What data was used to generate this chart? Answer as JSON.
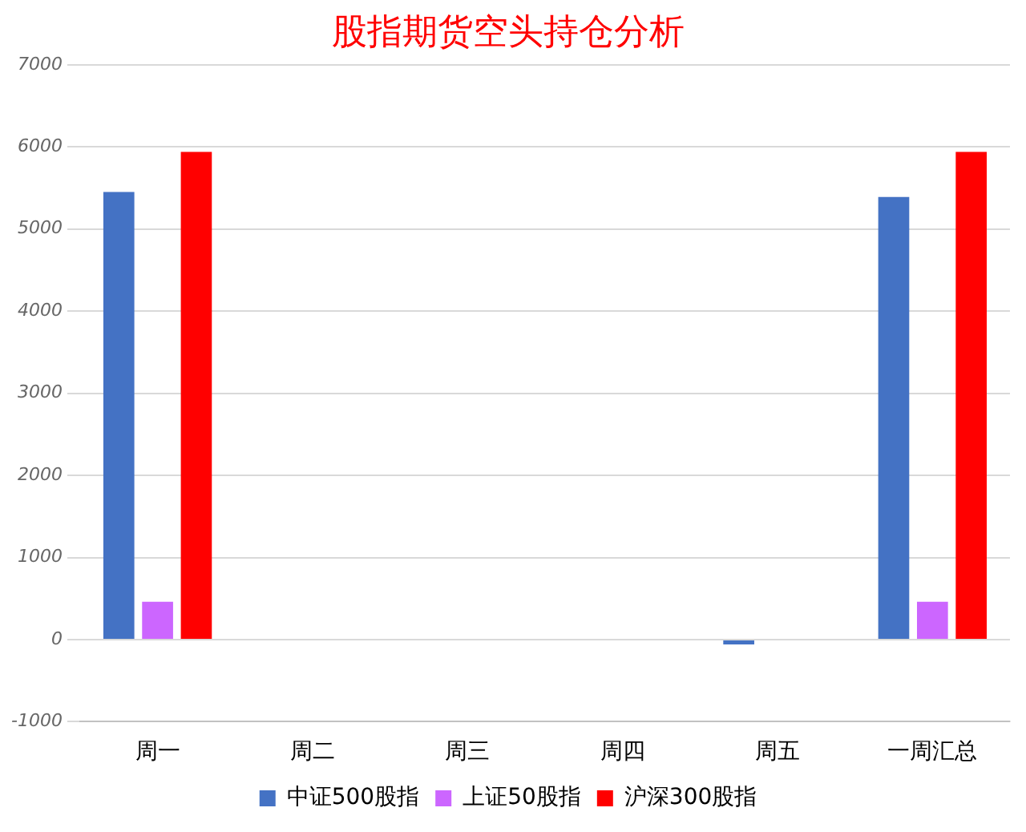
{
  "chart_data": {
    "type": "bar",
    "title": "股指期货空头持仓分析",
    "categories": [
      "周一",
      "周二",
      "周三",
      "周四",
      "周五",
      "一周汇总"
    ],
    "series": [
      {
        "name": "中证500股指",
        "color": "#4472c4",
        "values": [
          5450,
          0,
          0,
          0,
          -60,
          5390
        ]
      },
      {
        "name": "上证50股指",
        "color": "#cc66ff",
        "values": [
          460,
          0,
          0,
          0,
          0,
          460
        ]
      },
      {
        "name": "沪深300股指",
        "color": "#ff0000",
        "values": [
          5940,
          0,
          0,
          0,
          0,
          5940
        ]
      }
    ],
    "ylim": [
      -1000,
      7000
    ],
    "yticks": [
      -1000,
      0,
      1000,
      2000,
      3000,
      4000,
      5000,
      6000,
      7000
    ],
    "grid": "y",
    "legend": "bottom"
  }
}
